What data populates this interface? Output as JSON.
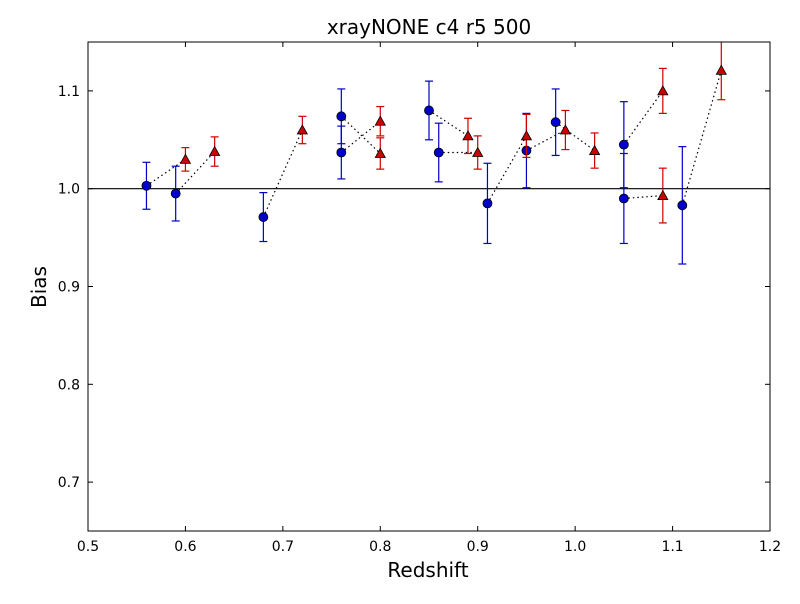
{
  "chart_data": {
    "type": "scatter",
    "title": "xrayNONE c4 r5 500",
    "xlabel": "Redshift",
    "ylabel": "Bias",
    "xlim": [
      0.5,
      1.2
    ],
    "ylim": [
      0.65,
      1.15
    ],
    "x_ticks": [
      "0.5",
      "0.6",
      "0.7",
      "0.8",
      "0.9",
      "1.0",
      "1.1",
      "1.2"
    ],
    "y_ticks": [
      "0.7",
      "0.8",
      "0.9",
      "1.0",
      "1.1"
    ],
    "reference_line": 1.0,
    "grid": false,
    "legend": "none",
    "series": [
      {
        "marker": "circle",
        "color": "#0000cc",
        "points": [
          {
            "x": 0.56,
            "y": 1.003,
            "err": 0.024
          },
          {
            "x": 0.59,
            "y": 0.995,
            "err": 0.028
          },
          {
            "x": 0.68,
            "y": 0.971,
            "err": 0.025
          },
          {
            "x": 0.76,
            "y": 1.074,
            "err": 0.028
          },
          {
            "x": 0.76,
            "y": 1.037,
            "err": 0.027
          },
          {
            "x": 0.85,
            "y": 1.08,
            "err": 0.03
          },
          {
            "x": 0.86,
            "y": 1.037,
            "err": 0.03
          },
          {
            "x": 0.91,
            "y": 0.985,
            "err": 0.041
          },
          {
            "x": 0.95,
            "y": 1.039,
            "err": 0.038
          },
          {
            "x": 0.98,
            "y": 1.068,
            "err": 0.034
          },
          {
            "x": 1.05,
            "y": 1.045,
            "err": 0.044
          },
          {
            "x": 1.05,
            "y": 0.99,
            "err": 0.046
          },
          {
            "x": 1.11,
            "y": 0.983,
            "err": 0.06
          }
        ]
      },
      {
        "marker": "triangle",
        "color": "#cc0000",
        "points": [
          {
            "x": 0.6,
            "y": 1.03,
            "err": 0.012
          },
          {
            "x": 0.63,
            "y": 1.038,
            "err": 0.015
          },
          {
            "x": 0.72,
            "y": 1.06,
            "err": 0.014
          },
          {
            "x": 0.8,
            "y": 1.069,
            "err": 0.015
          },
          {
            "x": 0.8,
            "y": 1.036,
            "err": 0.016
          },
          {
            "x": 0.89,
            "y": 1.054,
            "err": 0.018
          },
          {
            "x": 0.9,
            "y": 1.037,
            "err": 0.017
          },
          {
            "x": 0.95,
            "y": 1.054,
            "err": 0.022
          },
          {
            "x": 0.99,
            "y": 1.06,
            "err": 0.02
          },
          {
            "x": 1.02,
            "y": 1.039,
            "err": 0.018
          },
          {
            "x": 1.09,
            "y": 1.1,
            "err": 0.023
          },
          {
            "x": 1.09,
            "y": 0.993,
            "err": 0.028
          },
          {
            "x": 1.15,
            "y": 1.121,
            "err": 0.03
          }
        ]
      }
    ],
    "connectors": [
      [
        [
          0.56,
          1.003
        ],
        [
          0.6,
          1.03
        ]
      ],
      [
        [
          0.59,
          0.995
        ],
        [
          0.63,
          1.038
        ]
      ],
      [
        [
          0.68,
          0.971
        ],
        [
          0.72,
          1.06
        ]
      ],
      [
        [
          0.76,
          1.074
        ],
        [
          0.8,
          1.036
        ]
      ],
      [
        [
          0.76,
          1.037
        ],
        [
          0.8,
          1.069
        ]
      ],
      [
        [
          0.85,
          1.08
        ],
        [
          0.89,
          1.054
        ]
      ],
      [
        [
          0.86,
          1.037
        ],
        [
          0.9,
          1.037
        ]
      ],
      [
        [
          0.91,
          0.985
        ],
        [
          0.95,
          1.054
        ]
      ],
      [
        [
          0.95,
          1.039
        ],
        [
          0.99,
          1.06
        ]
      ],
      [
        [
          0.98,
          1.068
        ],
        [
          1.02,
          1.039
        ]
      ],
      [
        [
          1.05,
          1.045
        ],
        [
          1.09,
          1.1
        ]
      ],
      [
        [
          1.05,
          0.99
        ],
        [
          1.09,
          0.993
        ]
      ],
      [
        [
          1.11,
          0.983
        ],
        [
          1.15,
          1.121
        ]
      ]
    ]
  }
}
